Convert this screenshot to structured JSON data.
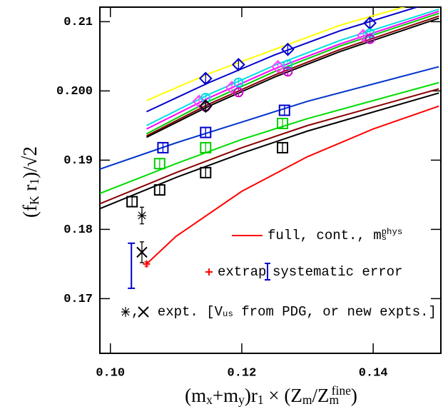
{
  "chart_data": {
    "type": "line",
    "x_label": [
      {
        "text": "(m"
      },
      {
        "sub": "x"
      },
      {
        "text": "+m"
      },
      {
        "sub": "y"
      },
      {
        "text": ")r"
      },
      {
        "sub": "1"
      },
      {
        "text": " × (Z"
      },
      {
        "sub": "m"
      },
      {
        "text": "/Z"
      },
      {
        "sub": "m"
      },
      {
        "sup": "fine"
      },
      {
        "text": ")"
      }
    ],
    "y_label": [
      {
        "text": "(f"
      },
      {
        "sub": "K"
      },
      {
        "text": " r"
      },
      {
        "sub": "1"
      },
      {
        "text": ")/√2"
      }
    ],
    "xlim": [
      0.0984,
      0.1503
    ],
    "ylim": [
      0.1621,
      0.2121
    ],
    "xticks": [
      {
        "value": 0.1,
        "label": "0.10"
      },
      0.12,
      0.14
    ],
    "yticks": [
      0.17,
      0.18,
      0.19,
      {
        "value": 0.2,
        "label": "0.200"
      },
      0.21
    ],
    "curves": [
      {
        "color": "#ffff00",
        "x": [
          0.1055,
          0.115,
          0.125,
          0.135,
          0.145
        ],
        "y": [
          0.1986,
          0.2025,
          0.206,
          0.2095,
          0.2122
        ]
      },
      {
        "color": "#0000cc",
        "x": [
          0.1055,
          0.115,
          0.125,
          0.135,
          0.148
        ],
        "y": [
          0.197,
          0.2012,
          0.2052,
          0.2087,
          0.2125
        ]
      },
      {
        "color": "#00e0e0",
        "x": [
          0.1055,
          0.115,
          0.125,
          0.135,
          0.15
        ],
        "y": [
          0.195,
          0.1995,
          0.2037,
          0.2073,
          0.2118
        ]
      },
      {
        "color": "#ff00ff",
        "x": [
          0.1055,
          0.115,
          0.125,
          0.135,
          0.15
        ],
        "y": [
          0.1945,
          0.199,
          0.2032,
          0.2068,
          0.2115
        ]
      },
      {
        "color": "#00cc00",
        "x": [
          0.1055,
          0.115,
          0.125,
          0.135,
          0.15
        ],
        "y": [
          0.1938,
          0.1985,
          0.2028,
          0.2065,
          0.2112
        ]
      },
      {
        "color": "#8b0000",
        "x": [
          0.1055,
          0.115,
          0.125,
          0.135,
          0.15
        ],
        "y": [
          0.1935,
          0.1981,
          0.2023,
          0.206,
          0.2108
        ]
      },
      {
        "color": "#000000",
        "x": [
          0.1055,
          0.115,
          0.125,
          0.135,
          0.15
        ],
        "y": [
          0.1933,
          0.1978,
          0.202,
          0.2057,
          0.2105
        ]
      },
      {
        "color": "#0033cc",
        "x": [
          0.0984,
          0.11,
          0.12,
          0.13,
          0.15
        ],
        "y": [
          0.1887,
          0.1925,
          0.1955,
          0.1985,
          0.2035
        ]
      },
      {
        "color": "#00dd00",
        "x": [
          0.0984,
          0.11,
          0.12,
          0.13,
          0.15
        ],
        "y": [
          0.1852,
          0.1895,
          0.193,
          0.196,
          0.2012
        ]
      },
      {
        "color": "#8b0000",
        "x": [
          0.0984,
          0.11,
          0.12,
          0.13,
          0.15
        ],
        "y": [
          0.1837,
          0.1882,
          0.1918,
          0.195,
          0.2003
        ]
      },
      {
        "color": "#000000",
        "x": [
          0.0984,
          0.11,
          0.12,
          0.13,
          0.15
        ],
        "y": [
          0.183,
          0.1875,
          0.191,
          0.1942,
          0.1997
        ]
      },
      {
        "color": "#ff0000",
        "x": [
          0.1055,
          0.11,
          0.12,
          0.13,
          0.14,
          0.15
        ],
        "y": [
          0.175,
          0.179,
          0.1855,
          0.1905,
          0.1945,
          0.1978
        ]
      }
    ],
    "points": [
      {
        "marker": "square",
        "color": "#0000cc",
        "x": [
          0.108,
          0.1145,
          0.1265
        ],
        "y": [
          0.1918,
          0.194,
          0.1972
        ],
        "errors": [
          0.0007,
          0.0007,
          0.0007
        ]
      },
      {
        "marker": "square",
        "color": "#00cc00",
        "x": [
          0.1075,
          0.1145,
          0.1262
        ],
        "y": [
          0.1895,
          0.1918,
          0.1953
        ],
        "errors": [
          0.0007,
          0.0007,
          0.0007
        ]
      },
      {
        "marker": "square",
        "color": "#000000",
        "x": [
          0.1033,
          0.1075,
          0.1145,
          0.1262
        ],
        "y": [
          0.184,
          0.1857,
          0.1882,
          0.1918
        ],
        "errors": [
          0.0007,
          0.0007,
          0.0007,
          0.0007
        ]
      },
      {
        "marker": "diamond",
        "color": "#0000cc",
        "x": [
          0.1145,
          0.1195,
          0.127,
          0.1395
        ],
        "y": [
          0.2018,
          0.2038,
          0.206,
          0.2098
        ],
        "errors": [
          0.0006,
          0.0006,
          0.0006,
          0.0006
        ]
      },
      {
        "marker": "diamond",
        "color": "#ff44ff",
        "x": [
          0.1135,
          0.1185,
          0.1255,
          0.1385
        ],
        "y": [
          0.1985,
          0.2005,
          0.2035,
          0.208
        ],
        "errors": [
          0.0006,
          0.0006,
          0.0006,
          0.0006
        ]
      },
      {
        "marker": "circle",
        "color": "#00dddd",
        "x": [
          0.1145,
          0.1195,
          0.127,
          0.1395
        ],
        "y": [
          0.199,
          0.2012,
          0.2038,
          0.2083
        ],
        "errors": [
          0.0006,
          0.0006,
          0.0006,
          0.0006
        ]
      },
      {
        "marker": "circle",
        "color": "#cc00cc",
        "x": [
          0.1145,
          0.1195,
          0.127,
          0.1395
        ],
        "y": [
          0.1977,
          0.1998,
          0.2028,
          0.2075
        ],
        "errors": [
          0.0006,
          0.0006,
          0.0006,
          0.0006
        ]
      },
      {
        "marker": "diamond",
        "color": "#000000",
        "x": [
          0.1145
        ],
        "y": [
          0.1978
        ],
        "errors": [
          0.0006
        ]
      },
      {
        "marker": "asterisk",
        "color": "#000000",
        "x": [
          0.1048
        ],
        "y": [
          0.182
        ],
        "errors": [
          0.0012
        ]
      },
      {
        "marker": "cross",
        "color": "#000000",
        "x": [
          0.1048
        ],
        "y": [
          0.1767
        ],
        "errors": [
          0.0015
        ]
      },
      {
        "marker": "plus",
        "color": "#ff0000",
        "x": [
          0.1055
        ],
        "y": [
          0.175
        ],
        "errors": [
          0.0003
        ]
      }
    ],
    "systematic_error": {
      "color": "#0000cc",
      "x": 0.1032,
      "y": [
        0.1715,
        0.178
      ]
    },
    "annotations": [
      [
        {
          "text": "full, cont., m"
        },
        {
          "sub": "s"
        },
        {
          "sup": "phys"
        }
      ],
      [
        {
          "text": "extrap"
        }
      ],
      [
        {
          "text": "systematic error"
        }
      ],
      [
        {
          "text": ","
        },
        {
          "text": " expt. [V"
        },
        {
          "sub": "us"
        },
        {
          "text": " from PDG, or new expts.]"
        }
      ]
    ]
  }
}
